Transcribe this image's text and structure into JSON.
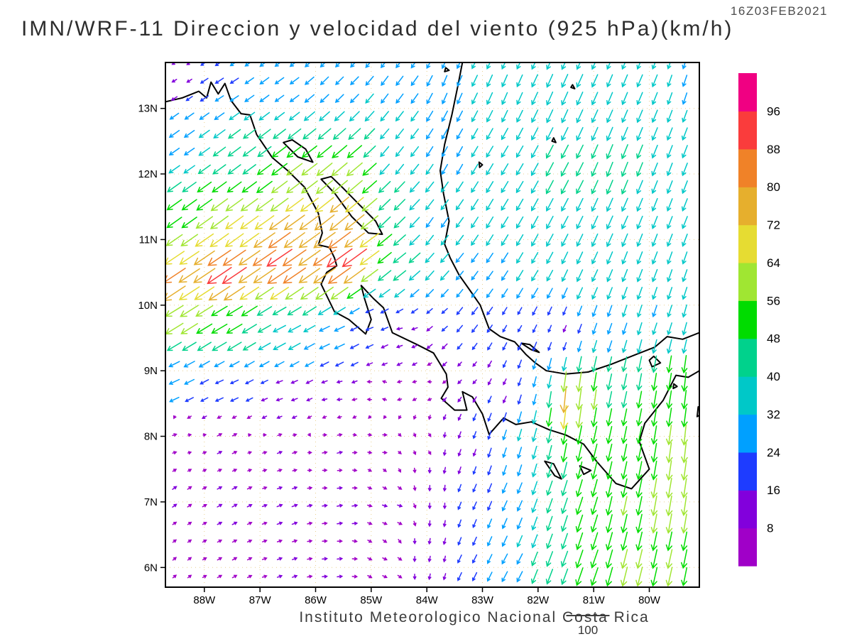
{
  "header": {
    "title": "IMN/WRF-11 Direccion y velocidad del viento (925 hPa)(km/h)",
    "timestamp": "16Z03FEB2021"
  },
  "footer": {
    "credit": "Instituto Meteorologico Nacional Costa Rica",
    "ref_label": "100"
  },
  "chart_data": {
    "type": "quiver",
    "title": "IMN/WRF-11 Direccion y velocidad del viento (925 hPa)(km/h)",
    "model": "IMN/WRF-11",
    "variable": "Direccion y velocidad del viento",
    "level": "925 hPa",
    "units": "km/h",
    "valid_time": "16Z03FEB2021",
    "grid": true,
    "lon_range": [
      -88.7,
      -79.1
    ],
    "lat_range": [
      5.7,
      13.7
    ],
    "lon_ticks": [
      {
        "value": -88,
        "label": "88W"
      },
      {
        "value": -87,
        "label": "87W"
      },
      {
        "value": -86,
        "label": "86W"
      },
      {
        "value": -85,
        "label": "85W"
      },
      {
        "value": -84,
        "label": "84W"
      },
      {
        "value": -83,
        "label": "83W"
      },
      {
        "value": -82,
        "label": "82W"
      },
      {
        "value": -81,
        "label": "81W"
      },
      {
        "value": -80,
        "label": "80W"
      }
    ],
    "lat_ticks": [
      {
        "value": 6,
        "label": "6N"
      },
      {
        "value": 7,
        "label": "7N"
      },
      {
        "value": 8,
        "label": "8N"
      },
      {
        "value": 9,
        "label": "9N"
      },
      {
        "value": 10,
        "label": "10N"
      },
      {
        "value": 11,
        "label": "11N"
      },
      {
        "value": 12,
        "label": "12N"
      },
      {
        "value": 13,
        "label": "13N"
      }
    ],
    "grid_step_deg": 0.27,
    "reference_speed": 100,
    "colorbar": {
      "position": "right",
      "levels": [
        8,
        16,
        24,
        32,
        40,
        48,
        56,
        64,
        72,
        80,
        88,
        96
      ],
      "colors": [
        "#a000c8",
        "#8200dc",
        "#1e3cff",
        "#00a0ff",
        "#00c8c8",
        "#00d28c",
        "#00dc00",
        "#a0e632",
        "#e6dc32",
        "#e6af2d",
        "#f08228",
        "#fa3c3c",
        "#f00082"
      ]
    },
    "wind_samples": [
      [
        -88.5,
        13.5,
        -8,
        -5
      ],
      [
        -87.6,
        13.4,
        -20,
        -13
      ],
      [
        -86.6,
        13.3,
        -22,
        -16
      ],
      [
        -85.6,
        13.4,
        -20,
        -20
      ],
      [
        -84.6,
        13.3,
        -18,
        -24
      ],
      [
        -83.6,
        13.3,
        -12,
        -28
      ],
      [
        -82.6,
        13.3,
        -14,
        -32
      ],
      [
        -81.6,
        13.2,
        -16,
        -36
      ],
      [
        -80.4,
        13.3,
        -14,
        -33
      ],
      [
        -79.3,
        13.4,
        -10,
        -30
      ],
      [
        -88.4,
        12.4,
        -26,
        -18
      ],
      [
        -87.4,
        12.2,
        -35,
        -26
      ],
      [
        -86.4,
        12.0,
        -45,
        -34
      ],
      [
        -85.4,
        12.0,
        -45,
        -38
      ],
      [
        -84.5,
        12.3,
        -20,
        -26
      ],
      [
        -83.6,
        12.3,
        -14,
        -26
      ],
      [
        -82.6,
        12.0,
        -18,
        -30
      ],
      [
        -81.6,
        12.0,
        -20,
        -38
      ],
      [
        -80.6,
        12.1,
        -16,
        -40
      ],
      [
        -79.4,
        12.0,
        -13,
        -34
      ],
      [
        -88.5,
        11.4,
        -42,
        -30
      ],
      [
        -87.5,
        11.2,
        -52,
        -38
      ],
      [
        -86.4,
        11.0,
        -62,
        -45
      ],
      [
        -85.5,
        11.3,
        -58,
        -48
      ],
      [
        -84.6,
        11.4,
        -30,
        -30
      ],
      [
        -83.8,
        11.2,
        -18,
        -26
      ],
      [
        -82.8,
        11.3,
        -18,
        -30
      ],
      [
        -81.8,
        11.2,
        -18,
        -34
      ],
      [
        -80.7,
        11.3,
        -16,
        -36
      ],
      [
        -79.5,
        11.2,
        -13,
        -33
      ],
      [
        -88.6,
        10.3,
        -68,
        -45
      ],
      [
        -87.6,
        10.5,
        -74,
        -50
      ],
      [
        -86.6,
        10.7,
        -77,
        -52
      ],
      [
        -85.8,
        10.7,
        -68,
        -47
      ],
      [
        -85.45,
        10.75,
        -80,
        -58
      ],
      [
        -85.2,
        10.95,
        -58,
        -42
      ],
      [
        -84.5,
        10.6,
        -35,
        -28
      ],
      [
        -83.8,
        10.5,
        -22,
        -25
      ],
      [
        -83.0,
        10.3,
        -16,
        -22
      ],
      [
        -82.2,
        10.4,
        -17,
        -28
      ],
      [
        -81.2,
        10.5,
        -15,
        -32
      ],
      [
        -80.2,
        10.6,
        -13,
        -33
      ],
      [
        -79.4,
        10.5,
        -11,
        -32
      ],
      [
        -88.6,
        9.9,
        -52,
        -32
      ],
      [
        -87.6,
        9.7,
        -44,
        -26
      ],
      [
        -86.6,
        9.6,
        -34,
        -18
      ],
      [
        -85.7,
        9.5,
        -26,
        -12
      ],
      [
        -85.0,
        9.7,
        -16,
        -6
      ],
      [
        -84.4,
        9.6,
        -10,
        -2
      ],
      [
        -83.8,
        9.8,
        -12,
        -10
      ],
      [
        -83.2,
        9.9,
        -14,
        -18
      ],
      [
        -82.4,
        9.7,
        -8,
        -14
      ],
      [
        -81.6,
        9.6,
        -6,
        -14
      ],
      [
        -80.7,
        9.6,
        -10,
        -28
      ],
      [
        -79.8,
        9.8,
        -10,
        -30
      ],
      [
        -79.2,
        9.7,
        -9,
        -33
      ],
      [
        -88.6,
        8.8,
        -26,
        -12
      ],
      [
        -87.6,
        8.7,
        -18,
        -8
      ],
      [
        -86.6,
        8.6,
        -12,
        -4
      ],
      [
        -85.6,
        8.6,
        -8,
        -1
      ],
      [
        -84.8,
        8.7,
        -5,
        2
      ],
      [
        -84.0,
        8.8,
        -4,
        0
      ],
      [
        -83.3,
        8.9,
        -6,
        -6
      ],
      [
        -82.6,
        8.8,
        -6,
        -12
      ],
      [
        -82.0,
        8.7,
        -7,
        -26
      ],
      [
        -81.5,
        8.5,
        -8,
        -80
      ],
      [
        -81.1,
        8.6,
        -8,
        -58
      ],
      [
        -80.6,
        8.7,
        -10,
        -45
      ],
      [
        -79.8,
        8.8,
        -8,
        -50
      ],
      [
        -79.2,
        8.8,
        -6,
        -55
      ],
      [
        -88.6,
        8.0,
        6,
        2
      ],
      [
        -87.6,
        7.9,
        8,
        4
      ],
      [
        -86.6,
        7.8,
        8,
        3
      ],
      [
        -85.6,
        7.8,
        9,
        2
      ],
      [
        -84.8,
        7.9,
        6,
        0
      ],
      [
        -84.0,
        7.9,
        3,
        -4
      ],
      [
        -83.3,
        7.8,
        -5,
        -14
      ],
      [
        -82.6,
        7.7,
        -8,
        -24
      ],
      [
        -82.0,
        7.8,
        -10,
        -35
      ],
      [
        -81.5,
        7.9,
        -10,
        -55
      ],
      [
        -81.0,
        7.7,
        -12,
        -50
      ],
      [
        -80.3,
        7.9,
        -10,
        -48
      ],
      [
        -79.6,
        7.8,
        -8,
        -58
      ],
      [
        -79.2,
        7.9,
        -6,
        -60
      ],
      [
        -88.5,
        7.1,
        7,
        5
      ],
      [
        -87.5,
        7.0,
        9,
        5
      ],
      [
        -86.5,
        6.9,
        10,
        4
      ],
      [
        -85.5,
        6.9,
        10,
        2
      ],
      [
        -84.6,
        6.9,
        8,
        -2
      ],
      [
        -83.8,
        7.0,
        0,
        -10
      ],
      [
        -83.2,
        7.0,
        -8,
        -18
      ],
      [
        -82.5,
        7.0,
        -12,
        -26
      ],
      [
        -81.8,
        7.0,
        -14,
        -40
      ],
      [
        -81.2,
        6.9,
        -16,
        -50
      ],
      [
        -80.5,
        7.0,
        -12,
        -55
      ],
      [
        -79.7,
        7.0,
        -10,
        -58
      ],
      [
        -79.2,
        7.0,
        -8,
        -56
      ],
      [
        -88.5,
        6.1,
        5,
        4
      ],
      [
        -87.5,
        6.0,
        7,
        4
      ],
      [
        -86.5,
        6.0,
        8,
        3
      ],
      [
        -85.6,
        6.0,
        9,
        1
      ],
      [
        -84.7,
        6.0,
        7,
        -3
      ],
      [
        -83.9,
        6.1,
        -2,
        -10
      ],
      [
        -83.2,
        6.0,
        -10,
        -20
      ],
      [
        -82.5,
        6.0,
        -14,
        -26
      ],
      [
        -81.8,
        6.0,
        -16,
        -42
      ],
      [
        -81.1,
        6.0,
        -18,
        -52
      ],
      [
        -80.4,
        5.9,
        -14,
        -56
      ],
      [
        -79.6,
        6.0,
        -12,
        -55
      ],
      [
        -79.2,
        5.9,
        -10,
        -52
      ]
    ],
    "map_outlines": [
      {
        "name": "pacific-coast",
        "closed": false,
        "pts": [
          [
            -88.7,
            13.1
          ],
          [
            -88.4,
            13.16
          ],
          [
            -88.1,
            13.26
          ],
          [
            -87.96,
            13.16
          ],
          [
            -87.88,
            13.4
          ],
          [
            -87.75,
            13.22
          ],
          [
            -87.63,
            13.38
          ],
          [
            -87.52,
            13.12
          ],
          [
            -87.34,
            12.92
          ],
          [
            -87.18,
            12.9
          ],
          [
            -87.06,
            12.6
          ],
          [
            -86.78,
            12.25
          ],
          [
            -86.5,
            12.05
          ],
          [
            -86.2,
            11.8
          ],
          [
            -85.95,
            11.4
          ],
          [
            -85.88,
            11.1
          ],
          [
            -85.95,
            10.92
          ],
          [
            -85.75,
            10.88
          ],
          [
            -85.66,
            10.72
          ],
          [
            -85.62,
            10.6
          ],
          [
            -85.8,
            10.5
          ],
          [
            -85.9,
            10.32
          ],
          [
            -85.66,
            9.9
          ],
          [
            -85.4,
            9.78
          ],
          [
            -85.1,
            9.56
          ],
          [
            -85.0,
            9.78
          ],
          [
            -85.12,
            10.1
          ],
          [
            -85.18,
            10.3
          ],
          [
            -84.96,
            10.1
          ],
          [
            -84.78,
            9.96
          ],
          [
            -84.62,
            9.58
          ],
          [
            -84.18,
            9.4
          ],
          [
            -83.88,
            9.27
          ],
          [
            -83.65,
            8.95
          ],
          [
            -83.62,
            8.75
          ],
          [
            -83.74,
            8.58
          ],
          [
            -83.5,
            8.4
          ],
          [
            -83.28,
            8.4
          ],
          [
            -83.36,
            8.68
          ],
          [
            -83.18,
            8.6
          ],
          [
            -83.0,
            8.34
          ],
          [
            -82.88,
            8.03
          ],
          [
            -82.62,
            8.28
          ],
          [
            -82.4,
            8.18
          ],
          [
            -82.12,
            8.22
          ],
          [
            -81.8,
            8.1
          ],
          [
            -81.5,
            8.02
          ],
          [
            -81.18,
            7.88
          ],
          [
            -80.95,
            7.62
          ],
          [
            -80.6,
            7.28
          ],
          [
            -80.32,
            7.2
          ],
          [
            -80.0,
            7.5
          ],
          [
            -80.18,
            7.92
          ],
          [
            -80.08,
            8.2
          ],
          [
            -79.75,
            8.55
          ],
          [
            -79.52,
            8.93
          ],
          [
            -79.3,
            8.9
          ],
          [
            -79.1,
            9.0
          ]
        ]
      },
      {
        "name": "caribbean-coast",
        "closed": false,
        "pts": [
          [
            -79.1,
            9.58
          ],
          [
            -79.4,
            9.48
          ],
          [
            -79.68,
            9.52
          ],
          [
            -79.9,
            9.36
          ],
          [
            -80.2,
            9.26
          ],
          [
            -80.68,
            9.1
          ],
          [
            -81.1,
            8.98
          ],
          [
            -81.5,
            8.95
          ],
          [
            -81.85,
            9.0
          ],
          [
            -82.05,
            9.12
          ],
          [
            -82.22,
            9.25
          ],
          [
            -82.42,
            9.44
          ],
          [
            -82.68,
            9.52
          ],
          [
            -82.88,
            9.64
          ],
          [
            -83.04,
            10.0
          ],
          [
            -83.22,
            10.22
          ],
          [
            -83.42,
            10.46
          ],
          [
            -83.58,
            10.72
          ],
          [
            -83.68,
            10.93
          ],
          [
            -83.6,
            11.28
          ],
          [
            -83.7,
            11.7
          ],
          [
            -83.76,
            12.05
          ],
          [
            -83.68,
            12.45
          ],
          [
            -83.55,
            12.9
          ],
          [
            -83.44,
            13.35
          ],
          [
            -83.36,
            13.7
          ]
        ]
      },
      {
        "name": "lake-nicaragua",
        "closed": true,
        "pts": [
          [
            -85.9,
            11.92
          ],
          [
            -85.65,
            11.7
          ],
          [
            -85.35,
            11.35
          ],
          [
            -85.05,
            11.1
          ],
          [
            -84.8,
            11.08
          ],
          [
            -84.92,
            11.28
          ],
          [
            -85.2,
            11.52
          ],
          [
            -85.5,
            11.78
          ],
          [
            -85.72,
            11.96
          ]
        ]
      },
      {
        "name": "lake-managua",
        "closed": true,
        "pts": [
          [
            -86.58,
            12.48
          ],
          [
            -86.32,
            12.26
          ],
          [
            -86.05,
            12.18
          ],
          [
            -86.18,
            12.38
          ],
          [
            -86.42,
            12.52
          ]
        ]
      },
      {
        "name": "coiba-island",
        "closed": true,
        "pts": [
          [
            -81.88,
            7.62
          ],
          [
            -81.7,
            7.4
          ],
          [
            -81.58,
            7.35
          ],
          [
            -81.72,
            7.58
          ]
        ]
      },
      {
        "name": "cebaco-island",
        "closed": true,
        "pts": [
          [
            -81.25,
            7.55
          ],
          [
            -81.05,
            7.48
          ],
          [
            -81.18,
            7.42
          ]
        ]
      },
      {
        "name": "bocas-islands",
        "closed": true,
        "pts": [
          [
            -82.3,
            9.42
          ],
          [
            -82.12,
            9.32
          ],
          [
            -81.98,
            9.28
          ],
          [
            -82.15,
            9.4
          ]
        ]
      },
      {
        "name": "san-andres-island",
        "closed": true,
        "pts": [
          [
            -81.72,
            12.55
          ],
          [
            -81.68,
            12.48
          ],
          [
            -81.75,
            12.5
          ]
        ]
      },
      {
        "name": "providencia-island",
        "closed": true,
        "pts": [
          [
            -81.38,
            13.36
          ],
          [
            -81.34,
            13.3
          ],
          [
            -81.41,
            13.32
          ]
        ]
      },
      {
        "name": "miskito-cay",
        "closed": true,
        "pts": [
          [
            -83.66,
            13.62
          ],
          [
            -83.6,
            13.58
          ],
          [
            -83.68,
            13.56
          ]
        ]
      },
      {
        "name": "corn-island",
        "closed": true,
        "pts": [
          [
            -83.06,
            12.18
          ],
          [
            -83.0,
            12.14
          ],
          [
            -83.05,
            12.1
          ]
        ]
      },
      {
        "name": "taboga-island",
        "closed": true,
        "pts": [
          [
            -79.56,
            8.8
          ],
          [
            -79.5,
            8.76
          ],
          [
            -79.57,
            8.73
          ]
        ]
      },
      {
        "name": "gatun-lake",
        "closed": true,
        "pts": [
          [
            -79.92,
            9.22
          ],
          [
            -79.8,
            9.12
          ],
          [
            -79.95,
            9.06
          ],
          [
            -80.0,
            9.16
          ]
        ]
      },
      {
        "name": "pearl-islands",
        "closed": true,
        "pts": [
          [
            -79.12,
            8.45
          ],
          [
            -79.05,
            8.35
          ],
          [
            -79.14,
            8.3
          ]
        ]
      }
    ]
  }
}
